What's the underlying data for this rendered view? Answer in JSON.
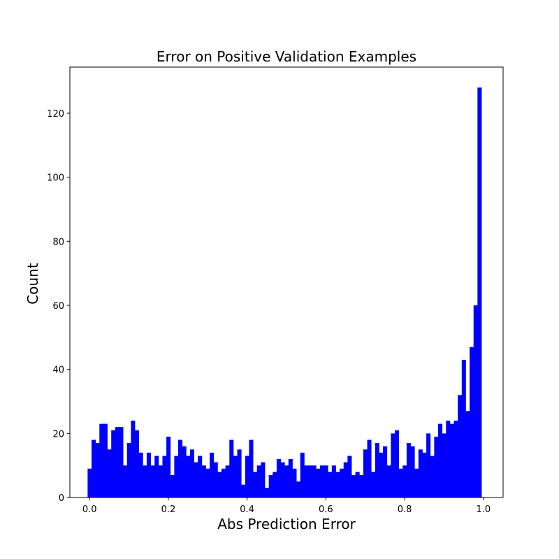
{
  "chart_data": {
    "type": "bar",
    "title": "Error on Positive Validation Examples",
    "xlabel": "Abs Prediction Error",
    "ylabel": "Count",
    "xlim": [
      -0.05,
      1.05
    ],
    "ylim": [
      0,
      134.4
    ],
    "bin_width": 0.01,
    "bin_start": -0.005,
    "xticks": [
      0.0,
      0.2,
      0.4,
      0.6,
      0.8,
      1.0
    ],
    "xtick_labels": [
      "0.0",
      "0.2",
      "0.4",
      "0.6",
      "0.8",
      "1.0"
    ],
    "yticks": [
      0,
      20,
      40,
      60,
      80,
      100,
      120
    ],
    "ytick_labels": [
      "0",
      "20",
      "40",
      "60",
      "80",
      "100",
      "120"
    ],
    "grid": false,
    "bar_color": "#0000ff",
    "values": [
      9,
      18,
      17,
      23,
      23,
      15,
      21,
      22,
      22,
      10,
      17,
      24,
      21,
      14,
      10,
      14,
      10,
      13,
      10,
      13,
      19,
      7,
      13,
      18,
      16,
      13,
      15,
      11,
      13,
      10,
      9,
      14,
      11,
      8,
      9,
      10,
      18,
      13,
      15,
      4,
      13,
      18,
      8,
      10,
      11,
      3,
      7,
      8,
      12,
      11,
      10,
      12,
      9,
      5,
      14,
      10,
      10,
      10,
      9,
      10,
      10,
      8,
      10,
      8,
      9,
      11,
      13,
      7,
      8,
      7,
      15,
      18,
      8,
      17,
      14,
      16,
      10,
      20,
      21,
      9,
      10,
      17,
      16,
      9,
      15,
      14,
      20,
      13,
      19,
      23,
      20,
      24,
      23,
      24,
      32,
      43,
      27,
      47,
      60,
      128
    ]
  }
}
